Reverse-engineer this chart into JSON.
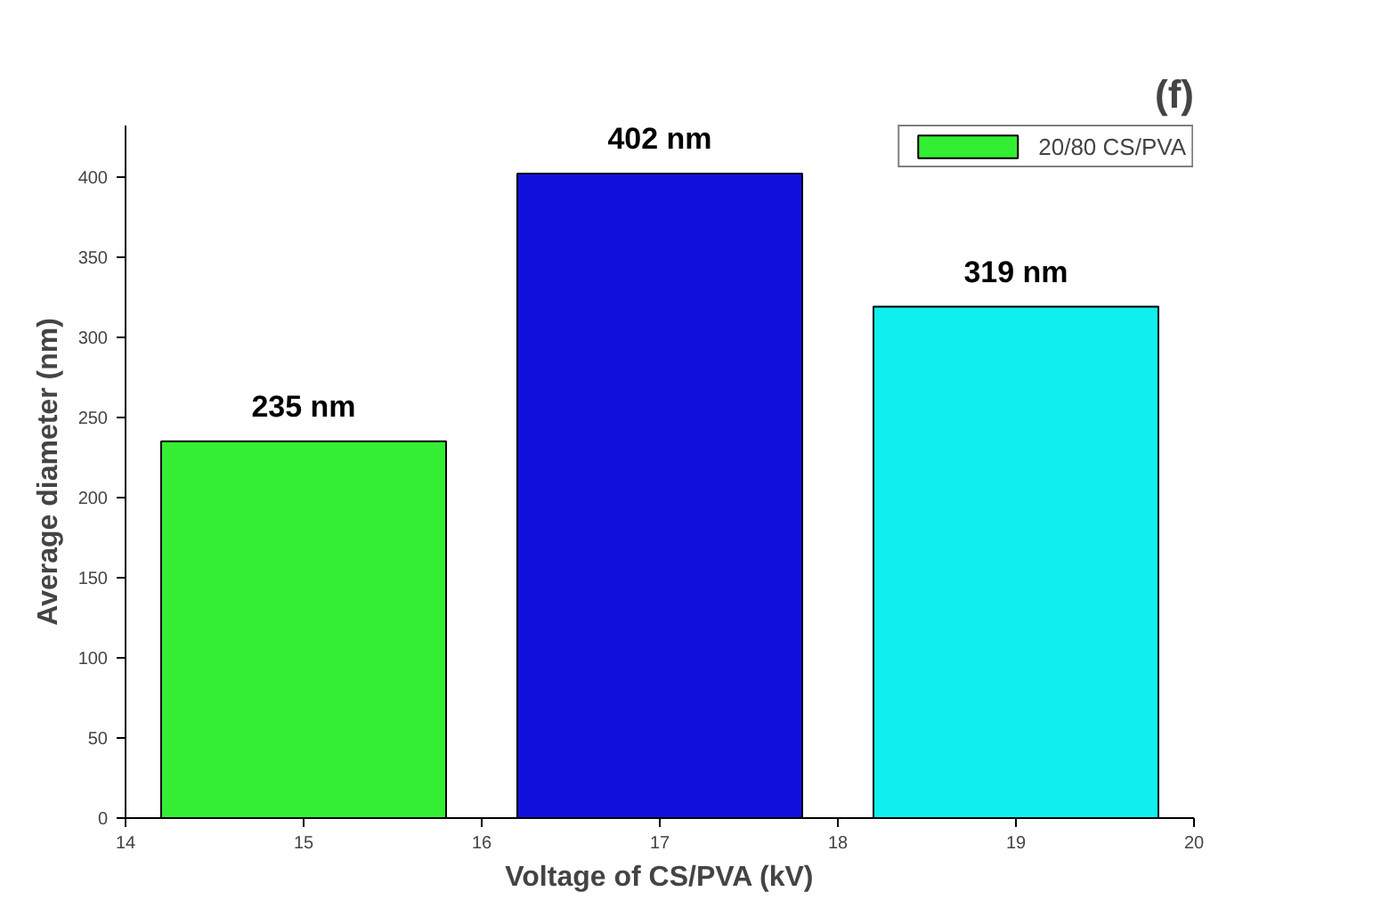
{
  "chart_data": {
    "type": "bar",
    "title": "(f)",
    "xlabel": "Voltage of CS/PVA (kV)",
    "ylabel": "Average diameter (nm)",
    "x": [
      15,
      17,
      19
    ],
    "series": [
      {
        "name": "20/80 CS/PVA",
        "color": "#33ee33",
        "colors": [
          "#33ee33",
          "#1010dd",
          "#11eeee"
        ],
        "values": [
          235,
          402,
          319
        ],
        "value_labels": [
          "235 nm",
          "402 nm",
          "319 nm"
        ]
      }
    ],
    "xlim": [
      14,
      20
    ],
    "xticks": [
      14,
      15,
      16,
      17,
      18,
      19,
      20
    ],
    "ylim": [
      0,
      432
    ],
    "yticks": [
      0,
      50,
      100,
      150,
      200,
      250,
      300,
      350,
      400
    ],
    "grid": false,
    "legend": "top right"
  }
}
